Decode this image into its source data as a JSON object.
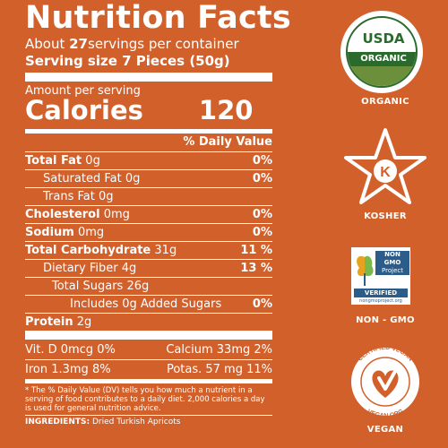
{
  "label": {
    "title": "Nutrition Facts",
    "servings_pre": "About ",
    "servings_count": "27",
    "servings_post": "servings per container",
    "serving_size_label": "Serving size",
    "serving_size_value": "7 Pieces (50g)",
    "amount_per_serving": "Amount per serving",
    "calories_label": "Calories",
    "calories_value": "120",
    "daily_value_header": "% Daily Value",
    "rows": [
      {
        "name": "Total Fat",
        "amount": "0g",
        "dv": "0%"
      },
      {
        "name": "Saturated Fat",
        "amount": "0g",
        "dv": "0%"
      },
      {
        "name": "Trans Fat",
        "amount": "0g",
        "dv": ""
      },
      {
        "name": "Cholesterol",
        "amount": "0mg",
        "dv": "0%"
      },
      {
        "name": "Sodium",
        "amount": "0mg",
        "dv": "0%"
      },
      {
        "name": "Total Carbohydrate",
        "amount": "31g",
        "dv": "11 %"
      },
      {
        "name": "Dietary Fiber",
        "amount": "4g",
        "dv": "13 %"
      },
      {
        "name": "Total Sugars",
        "amount": "26g",
        "dv": ""
      },
      {
        "name": "Includes 0g Added Sugars",
        "amount": "",
        "dv": "0%"
      },
      {
        "name": "Protein",
        "amount": "2g",
        "dv": ""
      }
    ],
    "vitamins": [
      {
        "left": "Vit. D 0mcg 0%",
        "right": "Calcium 33mg 2%"
      },
      {
        "left": "Iron 1.3mg 8%",
        "right": "Potas.   57 mg 11%"
      }
    ],
    "footnote": "* The % Daily Value (DV) tells you how much a nutrient in a serving of food contributes to a daily diet. 2,000 calories a day is used for general nutrition advice.",
    "ingredients_label": "INGREDIENTS:",
    "ingredients_value": "Dried Turkish Apricots"
  },
  "badges": {
    "organic": {
      "seal_top": "USDA",
      "seal_band": "ORGANIC",
      "label": "ORGANIC"
    },
    "kosher": {
      "letter": "K",
      "label": "KOSHER"
    },
    "nongmo": {
      "box_line1": "NON",
      "box_line2": "GMO",
      "box_line3": "Project",
      "verified": "VERIFIED",
      "url": "nongmoproject.org",
      "label": "NON - GMO"
    },
    "vegan": {
      "ring_top": "CERTIFIED VEGAN",
      "ring_bottom": "VEGAN.ORG",
      "label": "VEGAN"
    }
  },
  "colors": {
    "background": "#d2602b",
    "usda_green": "#2a6a2d",
    "nongmo_blue": "#2c5c8a"
  }
}
